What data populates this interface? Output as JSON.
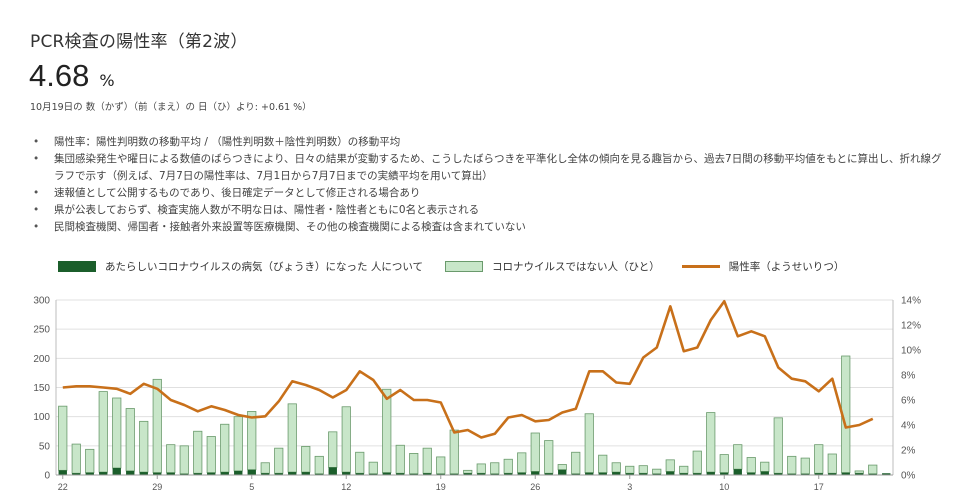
{
  "header": {
    "title": "PCR検査の陽性率（第2波）",
    "value": "4.68",
    "unit": "%",
    "comparison": "10月19日の 数（かず）（前（まえ）の 日（ひ）より: +0.61 %）"
  },
  "notes": [
    "陽性率：陽性判明数の移動平均 / （陽性判明数＋陰性判明数）の移動平均",
    "集団感染発生や曜日による数値のばらつきにより、日々の結果が変動するため、こうしたばらつきを平準化し全体の傾向を見る趣旨から、過去7日間の移動平均値をもとに算出し、折れ線グラフで示す（例えば、7月7日の陽性率は、7月1日から7月7日までの実績平均を用いて算出）",
    "速報値として公開するものであり、後日確定データとして修正される場合あり",
    "県が公表しておらず、検査実施人数が不明な日は、陽性者・陰性者ともに0名と表示される",
    "民間検査機関、帰国者・接触者外来設置等医療機関、その他の検査機関による検査は含まれていない"
  ],
  "legend": {
    "positive": "あたらしいコロナウイルスの病気（びょうき）になった 人について",
    "negative": "コロナウイルスではない人（ひと）",
    "rate": "陽性率（ようせいりつ）"
  },
  "colors": {
    "positive": "#1b5e2b",
    "negative": "#c8e6c9",
    "negative_border": "#6a9a6c",
    "rate": "#c8701a",
    "grid": "#e0e0e0"
  },
  "chart_data": {
    "type": "bar",
    "x_tick_labels": [
      "22",
      "29",
      "5",
      "12",
      "19",
      "26",
      "3",
      "10",
      "17"
    ],
    "y_left": {
      "ticks": [
        0,
        50,
        100,
        150,
        200,
        250,
        300
      ],
      "ylim": [
        0,
        300
      ]
    },
    "y_right": {
      "ticks": [
        "0%",
        "2%",
        "4%",
        "6%",
        "8%",
        "10%",
        "12%",
        "14%"
      ],
      "ylim": [
        0,
        14
      ]
    },
    "grid": true,
    "legend_position": "top",
    "series": [
      {
        "name": "あたらしいコロナウイルスの病気（びょうき）になった 人について",
        "type": "bar",
        "values": [
          8,
          3,
          4,
          5,
          12,
          7,
          5,
          4,
          4,
          2,
          3,
          4,
          5,
          7,
          9,
          3,
          3,
          5,
          5,
          2,
          13,
          5,
          3,
          2,
          4,
          3,
          2,
          3,
          2,
          2,
          3,
          3,
          2,
          3,
          4,
          6,
          3,
          9,
          2,
          4,
          4,
          5,
          3,
          3,
          2,
          6,
          3,
          3,
          5,
          4,
          10,
          4,
          6,
          3,
          2,
          2,
          3,
          3,
          4,
          3,
          2,
          3
        ]
      },
      {
        "name": "コロナウイルスではない人（ひと）",
        "type": "bar",
        "values": [
          110,
          50,
          40,
          138,
          120,
          107,
          87,
          160,
          48,
          48,
          72,
          62,
          82,
          93,
          100,
          18,
          43,
          117,
          44,
          30,
          61,
          112,
          36,
          20,
          143,
          48,
          35,
          43,
          29,
          75,
          5,
          16,
          19,
          24,
          34,
          66,
          56,
          9,
          37,
          101,
          30,
          16,
          12,
          13,
          8,
          20,
          12,
          38,
          102,
          31,
          42,
          26,
          16,
          95,
          30,
          27,
          49,
          33,
          200,
          4,
          15,
          0
        ]
      },
      {
        "name": "陽性率（ようせいりつ）",
        "type": "line",
        "values": [
          7.0,
          7.1,
          7.1,
          7.0,
          6.9,
          6.5,
          7.3,
          6.9,
          6.0,
          5.6,
          5.1,
          5.5,
          5.2,
          4.8,
          4.6,
          4.7,
          5.9,
          7.5,
          7.2,
          6.8,
          6.2,
          6.8,
          8.3,
          7.6,
          6.1,
          6.8,
          6.0,
          6.0,
          5.8,
          3.4,
          3.6,
          3.0,
          3.3,
          4.6,
          4.8,
          4.3,
          4.4,
          5.0,
          5.3,
          8.3,
          8.3,
          7.4,
          7.3,
          9.4,
          10.2,
          13.5,
          9.9,
          10.2,
          12.4,
          13.9,
          11.1,
          11.5,
          11.1,
          8.6,
          7.7,
          7.5,
          6.7,
          7.7,
          3.8,
          4.0,
          4.5,
          null
        ]
      }
    ]
  }
}
